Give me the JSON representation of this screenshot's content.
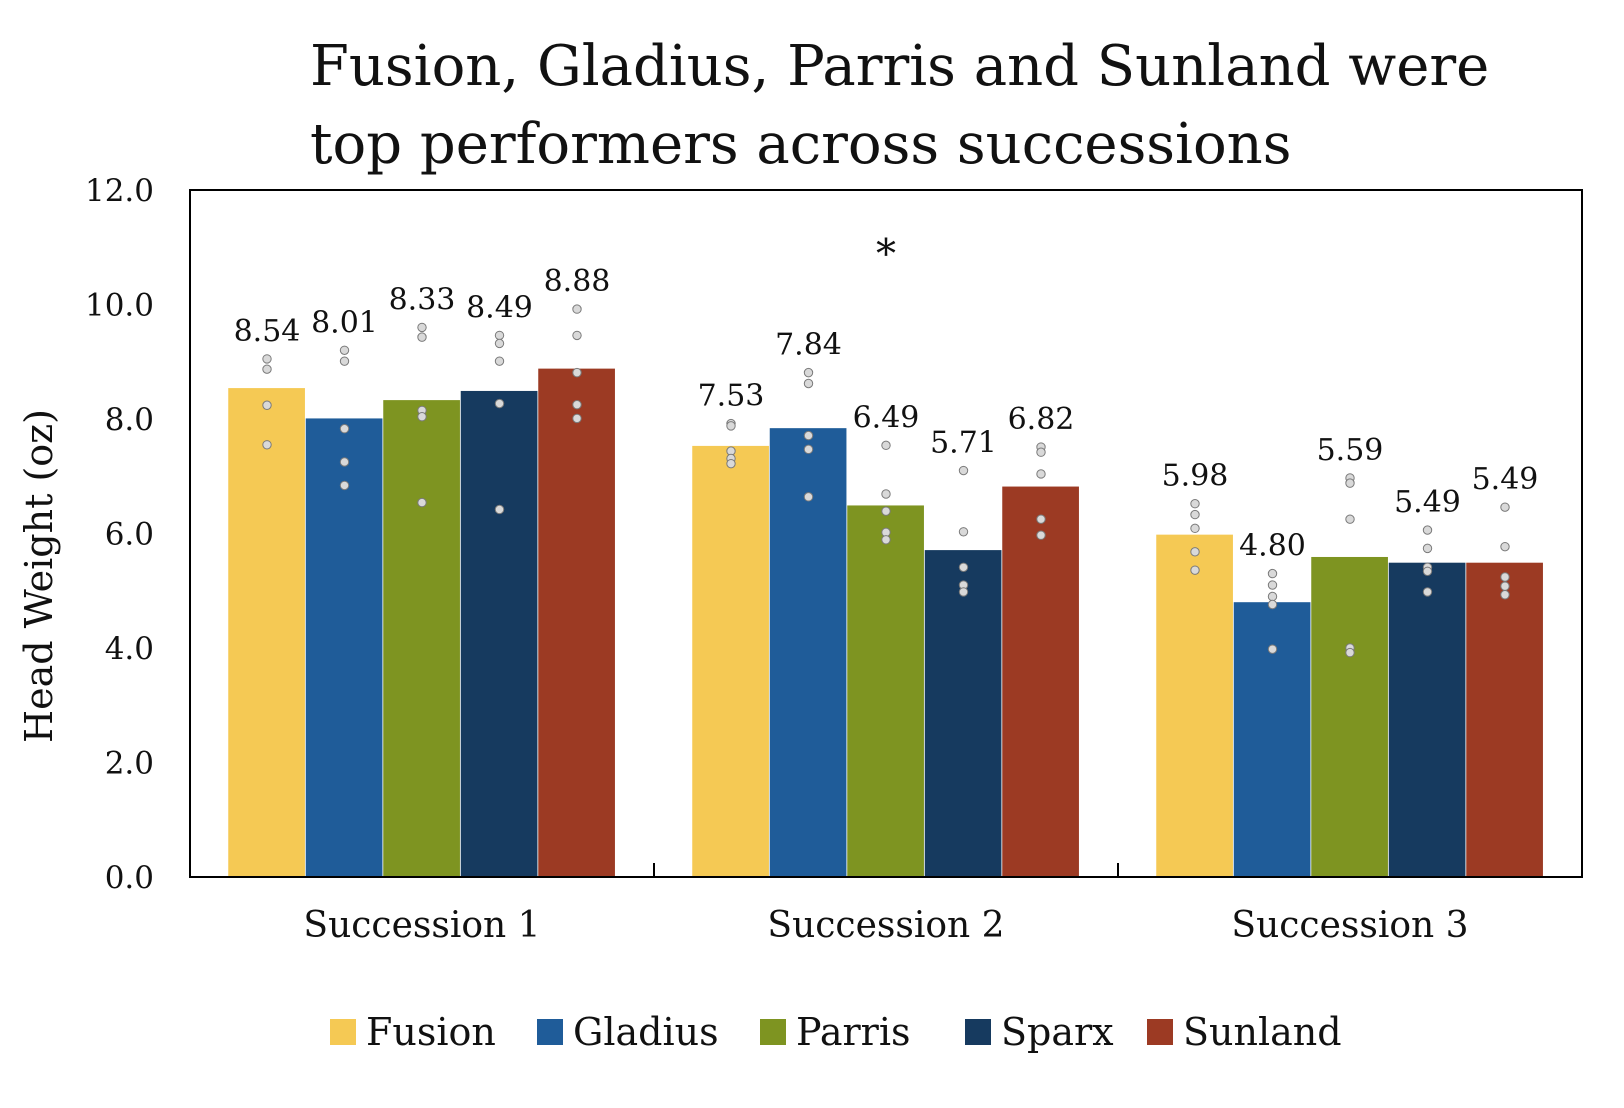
{
  "chart_data": {
    "type": "bar",
    "title": "Fusion, Gladius, Parris and Sunland were top performers across successions",
    "xlabel": "",
    "ylabel": "Head Weight (oz)",
    "ylim": [
      0,
      12
    ],
    "yticks": [
      "0.0",
      "2.0",
      "4.0",
      "6.0",
      "8.0",
      "10.0",
      "12.0"
    ],
    "categories": [
      "Succession 1",
      "Succession 2",
      "Succession 3"
    ],
    "legend_position": "bottom",
    "annotations": [
      {
        "text": "*",
        "category": "Succession 2"
      }
    ],
    "series": [
      {
        "name": "Fusion",
        "color": "#F5C954",
        "values": [
          8.54,
          7.53,
          5.98
        ],
        "labels": [
          "8.54",
          "7.53",
          "5.98"
        ],
        "points": [
          [
            9.05,
            8.87,
            8.24,
            7.55
          ],
          [
            7.92,
            7.88,
            7.44,
            7.31,
            7.22
          ],
          [
            6.52,
            6.33,
            6.09,
            5.68,
            5.36
          ]
        ]
      },
      {
        "name": "Gladius",
        "color": "#1F5C99",
        "values": [
          8.01,
          7.84,
          4.8
        ],
        "labels": [
          "8.01",
          "7.84",
          "4.80"
        ],
        "points": [
          [
            9.2,
            9.01,
            7.83,
            7.25,
            6.84
          ],
          [
            8.81,
            8.62,
            7.71,
            7.47,
            6.64
          ],
          [
            5.3,
            5.1,
            4.9,
            4.76,
            3.98
          ]
        ]
      },
      {
        "name": "Parris",
        "color": "#7E9421",
        "values": [
          8.33,
          6.49,
          5.59
        ],
        "labels": [
          "8.33",
          "6.49",
          "5.59"
        ],
        "points": [
          [
            9.6,
            9.43,
            8.15,
            8.04,
            6.54
          ],
          [
            7.54,
            6.69,
            6.39,
            6.02,
            5.89
          ],
          [
            6.97,
            6.88,
            6.25,
            4.0,
            3.92
          ]
        ]
      },
      {
        "name": "Sparx",
        "color": "#163A5F",
        "values": [
          8.49,
          5.71,
          5.49
        ],
        "labels": [
          "8.49",
          "5.71",
          "5.49"
        ],
        "points": [
          [
            9.46,
            9.32,
            9.01,
            8.27,
            6.42
          ],
          [
            7.1,
            6.03,
            5.41,
            5.1,
            4.98
          ],
          [
            6.06,
            5.74,
            5.41,
            5.34,
            4.98
          ]
        ]
      },
      {
        "name": "Sunland",
        "color": "#9C3A23",
        "values": [
          8.88,
          6.82,
          5.49
        ],
        "labels": [
          "8.88",
          "6.82",
          "5.49"
        ],
        "points": [
          [
            9.92,
            9.46,
            8.81,
            8.25,
            8.01
          ],
          [
            7.51,
            7.42,
            7.04,
            6.25,
            5.97
          ],
          [
            6.46,
            5.77,
            5.24,
            5.08,
            4.93
          ]
        ]
      }
    ]
  }
}
